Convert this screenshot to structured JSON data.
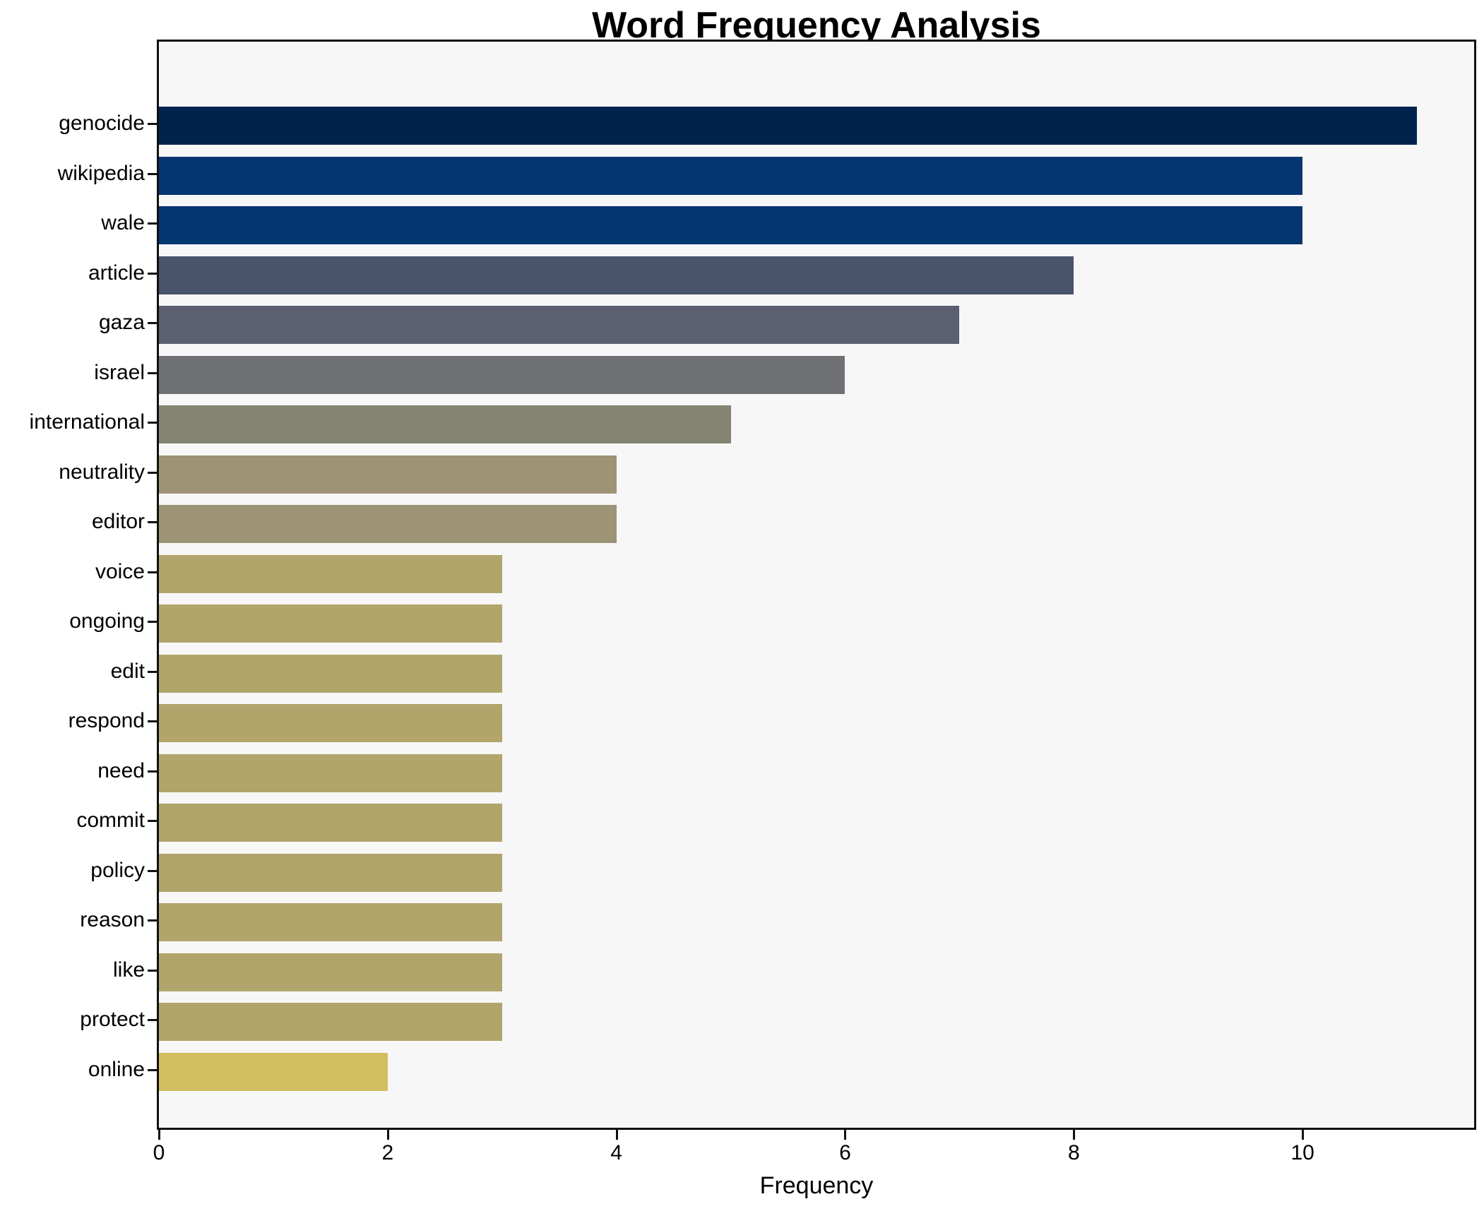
{
  "chart_data": {
    "type": "bar",
    "orientation": "horizontal",
    "title": "Word Frequency Analysis",
    "xlabel": "Frequency",
    "categories": [
      "genocide",
      "wikipedia",
      "wale",
      "article",
      "gaza",
      "israel",
      "international",
      "neutrality",
      "editor",
      "voice",
      "ongoing",
      "edit",
      "respond",
      "need",
      "commit",
      "policy",
      "reason",
      "like",
      "protect",
      "online"
    ],
    "values": [
      11,
      10,
      10,
      8,
      7,
      6,
      5,
      4,
      4,
      3,
      3,
      3,
      3,
      3,
      3,
      3,
      3,
      3,
      3,
      2
    ],
    "bar_colors": [
      "#00234d",
      "#043672",
      "#043672",
      "#49536c",
      "#5b5f70",
      "#707175",
      "#858472",
      "#9d9375",
      "#9d9375",
      "#b1a56c",
      "#b1a56c",
      "#b1a56c",
      "#b1a56c",
      "#b1a56c",
      "#b1a56c",
      "#b1a56c",
      "#b1a56c",
      "#b1a56c",
      "#b1a56c",
      "#d0be60"
    ],
    "xticks": [
      0,
      2,
      4,
      6,
      8,
      10
    ],
    "xlim": [
      0,
      11.5
    ],
    "grid": false,
    "legend_position": "none",
    "plot_background": "#f7f7f7",
    "figure_background": "#ffffff",
    "axis_color": "#111111",
    "text_color": "#000000"
  }
}
